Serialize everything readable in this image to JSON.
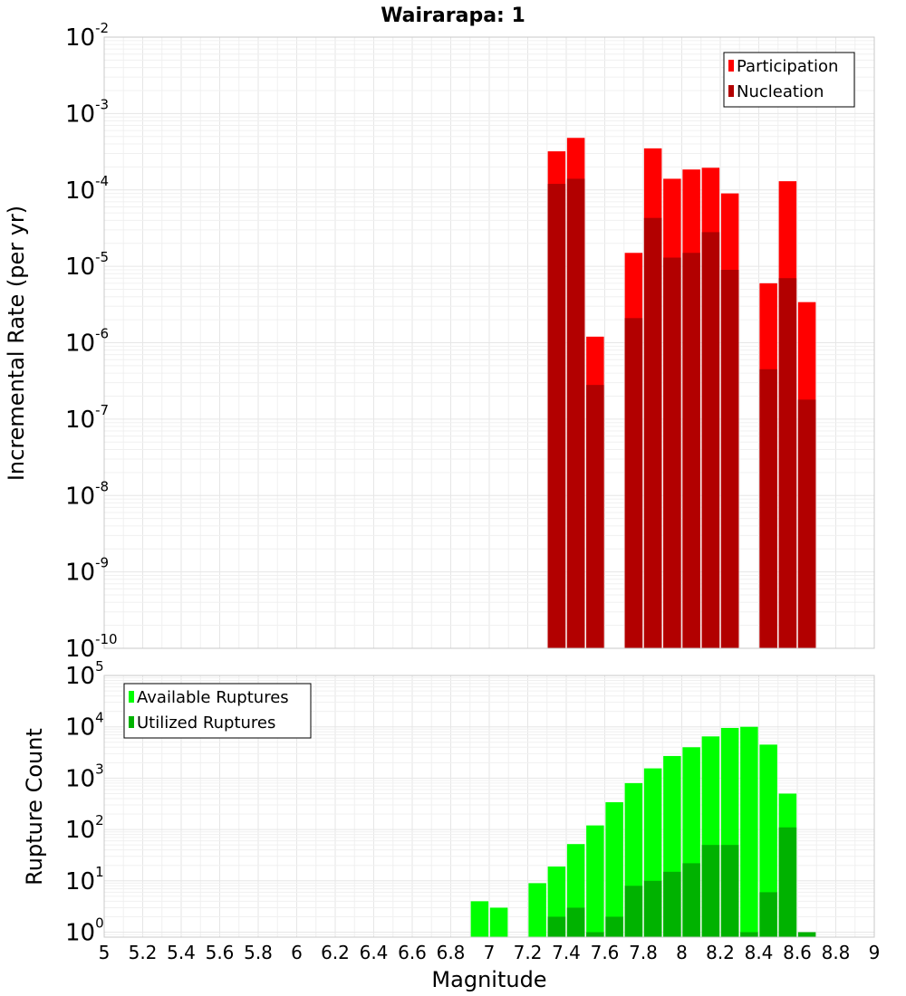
{
  "chart_data": [
    {
      "type": "bar",
      "title": "Wairarapa: 1",
      "ylabel": "Incremental Rate (per yr)",
      "xlabel": "",
      "y_scale": "log",
      "xlim": [
        5,
        9
      ],
      "ylim": [
        1e-10,
        0.01
      ],
      "y_ticks": [
        {
          "base": "10",
          "exp": "-10"
        },
        {
          "base": "10",
          "exp": "-9"
        },
        {
          "base": "10",
          "exp": "-8"
        },
        {
          "base": "10",
          "exp": "-7"
        },
        {
          "base": "10",
          "exp": "-6"
        },
        {
          "base": "10",
          "exp": "-5"
        },
        {
          "base": "10",
          "exp": "-4"
        },
        {
          "base": "10",
          "exp": "-3"
        },
        {
          "base": "10",
          "exp": "-2"
        }
      ],
      "legend_position": "top-right",
      "x": [
        7.35,
        7.45,
        7.55,
        7.75,
        7.85,
        7.95,
        8.05,
        8.15,
        8.25,
        8.45,
        8.55,
        8.65
      ],
      "series": [
        {
          "name": "Participation",
          "color": "#ff0000",
          "values": [
            0.00032,
            0.00048,
            1.2e-06,
            1.5e-05,
            0.00035,
            0.00014,
            0.000185,
            0.000195,
            9e-05,
            6e-06,
            0.00013,
            3.4e-06
          ]
        },
        {
          "name": "Nucleation",
          "color": "#b20000",
          "values": [
            0.00012,
            0.00014,
            2.8e-07,
            2.1e-06,
            4.3e-05,
            1.3e-05,
            1.5e-05,
            2.8e-05,
            9e-06,
            4.5e-07,
            7e-06,
            1.8e-07
          ]
        }
      ]
    },
    {
      "type": "bar",
      "title": "",
      "ylabel": "Rupture Count",
      "xlabel": "Magnitude",
      "y_scale": "log",
      "xlim": [
        5,
        9
      ],
      "ylim": [
        0.8,
        100000.0
      ],
      "y_ticks": [
        {
          "base": "10",
          "exp": "0"
        },
        {
          "base": "10",
          "exp": "1"
        },
        {
          "base": "10",
          "exp": "2"
        },
        {
          "base": "10",
          "exp": "3"
        },
        {
          "base": "10",
          "exp": "4"
        },
        {
          "base": "10",
          "exp": "5"
        }
      ],
      "x_ticks": [
        "5",
        "5.2",
        "5.4",
        "5.6",
        "5.8",
        "6",
        "6.2",
        "6.4",
        "6.6",
        "6.8",
        "7",
        "7.2",
        "7.4",
        "7.6",
        "7.8",
        "8",
        "8.2",
        "8.4",
        "8.6",
        "8.8",
        "9"
      ],
      "legend_position": "top-left",
      "x": [
        6.95,
        7.05,
        7.25,
        7.35,
        7.45,
        7.55,
        7.65,
        7.75,
        7.85,
        7.95,
        8.05,
        8.15,
        8.25,
        8.35,
        8.45,
        8.55,
        8.65
      ],
      "series": [
        {
          "name": "Available Ruptures",
          "color": "#00ff00",
          "values": [
            4,
            3,
            9,
            19,
            52,
            120,
            340,
            800,
            1550,
            2700,
            4000,
            6500,
            9500,
            10000,
            4500,
            500,
            0
          ]
        },
        {
          "name": "Utilized Ruptures",
          "color": "#00b200",
          "values": [
            0,
            0,
            0,
            2,
            3,
            1,
            2,
            8,
            10,
            15,
            22,
            50,
            50,
            1,
            6,
            110,
            1
          ]
        }
      ]
    }
  ]
}
